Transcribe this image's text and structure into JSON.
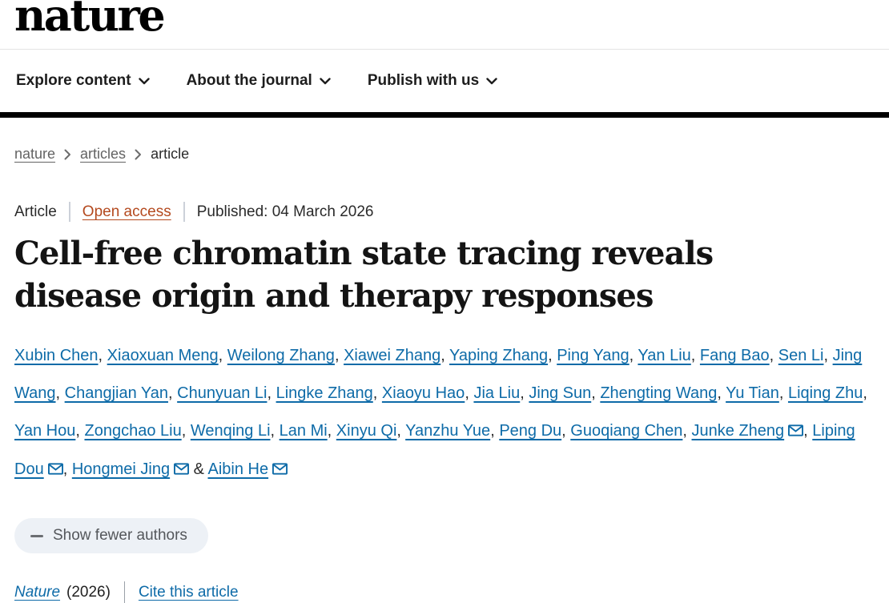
{
  "header": {
    "logo": "nature",
    "nav": [
      {
        "label": "Explore content"
      },
      {
        "label": "About the journal"
      },
      {
        "label": "Publish with us"
      }
    ]
  },
  "breadcrumb": {
    "items": [
      {
        "label": "nature"
      },
      {
        "label": "articles"
      },
      {
        "label": "article"
      }
    ]
  },
  "meta": {
    "type": "Article",
    "access": "Open access",
    "published": "Published: 04 March 2026"
  },
  "title": "Cell-free chromatin state tracing reveals disease origin and therapy responses",
  "authors": {
    "separator": ", ",
    "final_separator": " & ",
    "show_fewer_label": "Show fewer authors",
    "list": [
      {
        "name": "Xubin Chen"
      },
      {
        "name": "Xiaoxuan Meng"
      },
      {
        "name": "Weilong Zhang"
      },
      {
        "name": "Xiawei Zhang"
      },
      {
        "name": "Yaping Zhang"
      },
      {
        "name": "Ping Yang"
      },
      {
        "name": "Yan Liu"
      },
      {
        "name": "Fang Bao"
      },
      {
        "name": "Sen Li"
      },
      {
        "name": "Jing Wang"
      },
      {
        "name": "Changjian Yan"
      },
      {
        "name": "Chunyuan Li"
      },
      {
        "name": "Lingke Zhang"
      },
      {
        "name": "Xiaoyu Hao"
      },
      {
        "name": "Jia Liu"
      },
      {
        "name": "Jing Sun"
      },
      {
        "name": "Zhengting Wang"
      },
      {
        "name": "Yu Tian"
      },
      {
        "name": "Liqing Zhu"
      },
      {
        "name": "Yan Hou"
      },
      {
        "name": "Zongchao Liu"
      },
      {
        "name": "Wenqing Li"
      },
      {
        "name": "Lan Mi"
      },
      {
        "name": "Xinyu Qi"
      },
      {
        "name": "Yanzhu Yue"
      },
      {
        "name": "Peng Du"
      },
      {
        "name": "Guoqiang Chen"
      },
      {
        "name": "Junke Zheng",
        "email": true
      },
      {
        "name": "Liping Dou",
        "email": true
      },
      {
        "name": "Hongmei Jing",
        "email": true
      },
      {
        "name": "Aibin He",
        "email": true
      }
    ]
  },
  "citation": {
    "journal": "Nature",
    "year": "(2026)",
    "cite_label": "Cite this article"
  },
  "colors": {
    "link_blue": "#0e6ba8",
    "open_access": "#b4491e",
    "nav_bar": "#000000",
    "button_bg": "#edf1f6"
  }
}
